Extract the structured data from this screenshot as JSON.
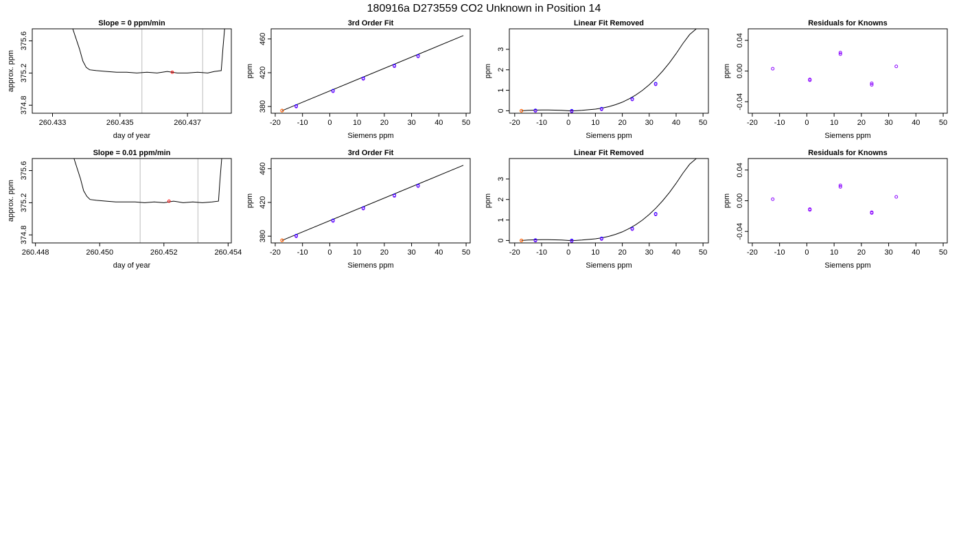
{
  "main_title": "180916a     D273559   CO2 Unknown in Position  14",
  "colors": {
    "line": "#000000",
    "vline": "#bbbbbb",
    "point_known": "#0000ff",
    "point_known_b": "#9900ff",
    "point_unknown": "#ff0000",
    "point_unknown_b": "#ff8800",
    "residual": "#8800ff"
  },
  "chart_data": [
    {
      "type": "line",
      "title": "Slope =  0  ppm/min",
      "xlabel": "day of year",
      "ylabel": "approx. ppm",
      "xticks": [
        "260.433",
        "260.435",
        "260.437"
      ],
      "yticks": [
        "374.8",
        "375.2",
        "375.6"
      ],
      "xlim": [
        260.4324,
        260.4383
      ],
      "ylim": [
        374.7,
        375.75
      ],
      "vlines": [
        260.43565,
        260.43745
      ],
      "trace": {
        "x": [
          260.4336,
          260.4338,
          260.4339,
          260.434,
          260.4341,
          260.4343,
          260.4346,
          260.4349,
          260.4352,
          260.4355,
          260.4358,
          260.4361,
          260.4364,
          260.4367,
          260.437,
          260.4373,
          260.4376,
          260.4378,
          260.438,
          260.43805,
          260.4381
        ],
        "y": [
          375.75,
          375.5,
          375.35,
          375.27,
          375.24,
          375.23,
          375.22,
          375.21,
          375.21,
          375.2,
          375.21,
          375.2,
          375.22,
          375.2,
          375.2,
          375.21,
          375.2,
          375.22,
          375.23,
          375.5,
          375.75
        ]
      },
      "marker": {
        "x": 260.43655,
        "y": 375.21
      }
    },
    {
      "type": "scatter",
      "title": "3rd Order Fit",
      "xlabel": "Siemens ppm",
      "ylabel": "ppm",
      "xticks": [
        "-20",
        "-10",
        "0",
        "10",
        "20",
        "30",
        "40",
        "50"
      ],
      "yticks": [
        "380",
        "420",
        "460"
      ],
      "xlim": [
        -21.5,
        51.5
      ],
      "ylim": [
        372,
        472
      ],
      "fit_line": {
        "x": [
          -17.5,
          49
        ],
        "y": [
          375,
          464
        ]
      },
      "known": {
        "x": [
          -12.3,
          1.2,
          12.3,
          23.7,
          32.4
        ],
        "y": [
          380.6,
          398.7,
          413.4,
          428.4,
          440
        ]
      },
      "unknown": {
        "x": [
          -17.5
        ],
        "y": [
          375.1
        ]
      }
    },
    {
      "type": "scatter",
      "title": "Linear Fit Removed",
      "xlabel": "Siemens ppm",
      "ylabel": "ppm",
      "xticks": [
        "-20",
        "-10",
        "0",
        "10",
        "20",
        "30",
        "40",
        "50"
      ],
      "yticks": [
        "0",
        "1",
        "2",
        "3"
      ],
      "xlim": [
        -22,
        52
      ],
      "ylim": [
        -0.12,
        4.0
      ],
      "curve": {
        "x": [
          -17.5,
          -15,
          -12.5,
          -10,
          -7.5,
          -5,
          -2.5,
          0,
          2.5,
          5,
          7.5,
          10,
          12.5,
          15,
          17.5,
          20,
          22.5,
          25,
          27.5,
          30,
          32.5,
          35,
          37.5,
          40,
          42.5,
          45,
          47.5,
          49
        ],
        "y": [
          0.0,
          0.02,
          0.03,
          0.04,
          0.04,
          0.03,
          0.02,
          0.0,
          0.0,
          0.02,
          0.05,
          0.08,
          0.13,
          0.2,
          0.3,
          0.42,
          0.58,
          0.77,
          1.0,
          1.27,
          1.58,
          1.94,
          2.34,
          2.79,
          3.28,
          3.72,
          4.0,
          4.1
        ]
      },
      "known": {
        "x": [
          -12.3,
          1.2,
          12.3,
          23.7,
          32.4
        ],
        "y": [
          0.02,
          0.0,
          0.1,
          0.58,
          1.32
        ]
      },
      "unknown": {
        "x": [
          -17.5
        ],
        "y": [
          0.0
        ]
      }
    },
    {
      "type": "scatter",
      "title": "Residuals for Knowns",
      "xlabel": "Siemens ppm",
      "ylabel": "ppm",
      "xticks": [
        "-20",
        "-10",
        "0",
        "10",
        "20",
        "30",
        "40",
        "50"
      ],
      "yticks": [
        "-0.04",
        "0.00",
        "0.04"
      ],
      "xlim": [
        -21.5,
        51.5
      ],
      "ylim": [
        -0.055,
        0.055
      ],
      "points": {
        "x": [
          -12.5,
          1.1,
          1.1,
          12.3,
          12.3,
          23.8,
          23.8,
          32.8
        ],
        "y": [
          0.003,
          -0.011,
          -0.012,
          0.024,
          0.022,
          -0.016,
          -0.018,
          0.006
        ]
      }
    },
    {
      "type": "line",
      "title": "Slope =  0.01  ppm/min",
      "xlabel": "day of year",
      "ylabel": "approx. ppm",
      "xticks": [
        "260.448",
        "260.450",
        "260.452",
        "260.454"
      ],
      "yticks": [
        "374.8",
        "375.2",
        "375.6"
      ],
      "xlim": [
        260.4479,
        260.4541
      ],
      "ylim": [
        374.7,
        375.75
      ],
      "vlines": [
        260.45126,
        260.45306
      ],
      "trace": {
        "x": [
          260.4492,
          260.4494,
          260.4495,
          260.4496,
          260.4497,
          260.4499,
          260.4502,
          260.4505,
          260.4508,
          260.4511,
          260.4514,
          260.4517,
          260.452,
          260.4523,
          260.4526,
          260.4529,
          260.4532,
          260.4535,
          260.4537,
          260.45375,
          260.4538
        ],
        "y": [
          375.75,
          375.5,
          375.35,
          375.28,
          375.24,
          375.23,
          375.22,
          375.21,
          375.21,
          375.21,
          375.2,
          375.21,
          375.2,
          375.22,
          375.2,
          375.21,
          375.2,
          375.21,
          375.22,
          375.5,
          375.75
        ]
      },
      "marker": {
        "x": 260.45216,
        "y": 375.22
      }
    },
    {
      "type": "scatter",
      "title": "3rd Order Fit",
      "xlabel": "Siemens ppm",
      "ylabel": "ppm",
      "xticks": [
        "-20",
        "-10",
        "0",
        "10",
        "20",
        "30",
        "40",
        "50"
      ],
      "yticks": [
        "380",
        "420",
        "460"
      ],
      "xlim": [
        -21.5,
        51.5
      ],
      "ylim": [
        372,
        472
      ],
      "fit_line": {
        "x": [
          -17.5,
          49
        ],
        "y": [
          375,
          464
        ]
      },
      "known": {
        "x": [
          -12.3,
          1.2,
          12.3,
          23.7,
          32.4
        ],
        "y": [
          380.6,
          398.7,
          413.4,
          428.4,
          440
        ]
      },
      "unknown": {
        "x": [
          -17.5
        ],
        "y": [
          375.1
        ]
      }
    },
    {
      "type": "scatter",
      "title": "Linear Fit Removed",
      "xlabel": "Siemens ppm",
      "ylabel": "ppm",
      "xticks": [
        "-20",
        "-10",
        "0",
        "10",
        "20",
        "30",
        "40",
        "50"
      ],
      "yticks": [
        "0",
        "1",
        "2",
        "3"
      ],
      "xlim": [
        -22,
        52
      ],
      "ylim": [
        -0.12,
        4.0
      ],
      "curve": {
        "x": [
          -17.5,
          -15,
          -12.5,
          -10,
          -7.5,
          -5,
          -2.5,
          0,
          2.5,
          5,
          7.5,
          10,
          12.5,
          15,
          17.5,
          20,
          22.5,
          25,
          27.5,
          30,
          32.5,
          35,
          37.5,
          40,
          42.5,
          45,
          47.5,
          49
        ],
        "y": [
          0.0,
          0.02,
          0.03,
          0.04,
          0.04,
          0.03,
          0.02,
          0.0,
          0.0,
          0.02,
          0.05,
          0.08,
          0.13,
          0.2,
          0.3,
          0.42,
          0.58,
          0.77,
          1.0,
          1.27,
          1.58,
          1.94,
          2.34,
          2.79,
          3.28,
          3.72,
          4.0,
          4.1
        ]
      },
      "known": {
        "x": [
          -12.3,
          1.2,
          12.3,
          23.7,
          32.4
        ],
        "y": [
          0.02,
          0.0,
          0.1,
          0.58,
          1.3
        ]
      },
      "unknown": {
        "x": [
          -17.5
        ],
        "y": [
          0.0
        ]
      }
    },
    {
      "type": "scatter",
      "title": "Residuals for Knowns",
      "xlabel": "Siemens ppm",
      "ylabel": "ppm",
      "xticks": [
        "-20",
        "-10",
        "0",
        "10",
        "20",
        "30",
        "40",
        "50"
      ],
      "yticks": [
        "-0.04",
        "0.00",
        "0.04"
      ],
      "xlim": [
        -21.5,
        51.5
      ],
      "ylim": [
        -0.055,
        0.055
      ],
      "points": {
        "x": [
          -12.5,
          1.1,
          1.1,
          12.3,
          12.3,
          23.8,
          23.8,
          32.8
        ],
        "y": [
          0.002,
          -0.011,
          -0.012,
          0.02,
          0.018,
          -0.015,
          -0.016,
          0.005
        ]
      }
    }
  ]
}
